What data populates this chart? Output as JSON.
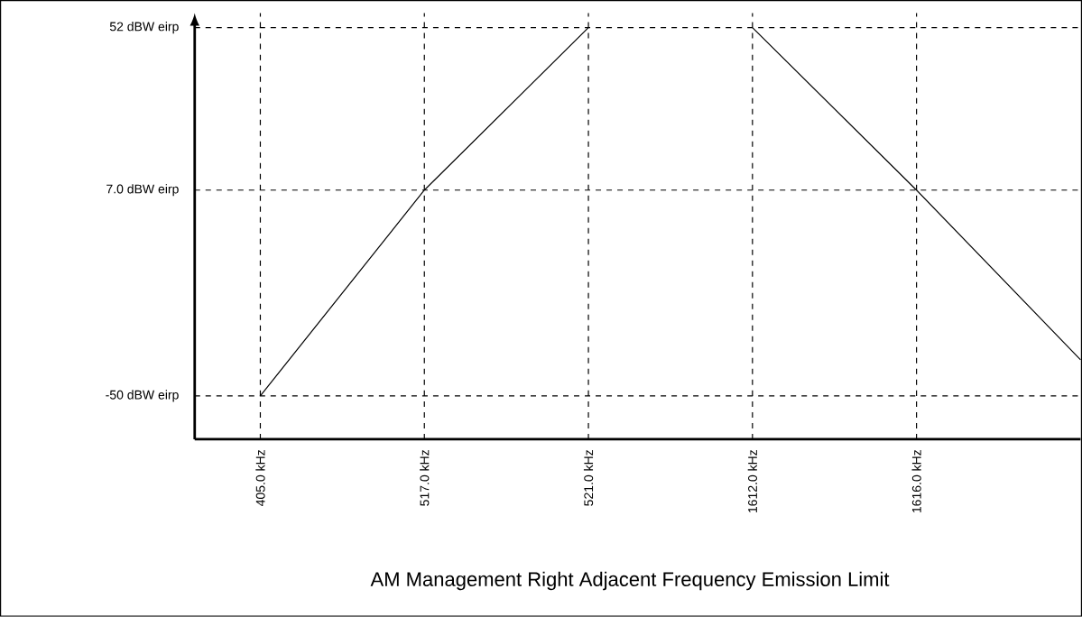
{
  "chart_data": {
    "type": "line",
    "title": "AM Management Right Adjacent Frequency Emission Limit",
    "categories": [
      "405.0 kHz",
      "517.0 kHz",
      "521.0 kHz",
      "1612.0 kHz",
      "1616.0 kHz",
      null
    ],
    "series": [
      {
        "color": "#000000",
        "values": [
          -50,
          7,
          52,
          null,
          null,
          null
        ]
      },
      {
        "color": "#000000",
        "values": [
          null,
          null,
          null,
          52,
          7,
          -40
        ]
      }
    ],
    "ylim": [
      -62,
      56
    ],
    "yticks": [
      {
        "value": -50,
        "label": "-50 dBW eirp"
      },
      {
        "value": 7,
        "label": "7.0 dBW eirp"
      },
      {
        "value": 52,
        "label": "52 dBW eirp"
      }
    ],
    "grid": true,
    "marker": "none",
    "line_style": "solid",
    "legend": false
  }
}
